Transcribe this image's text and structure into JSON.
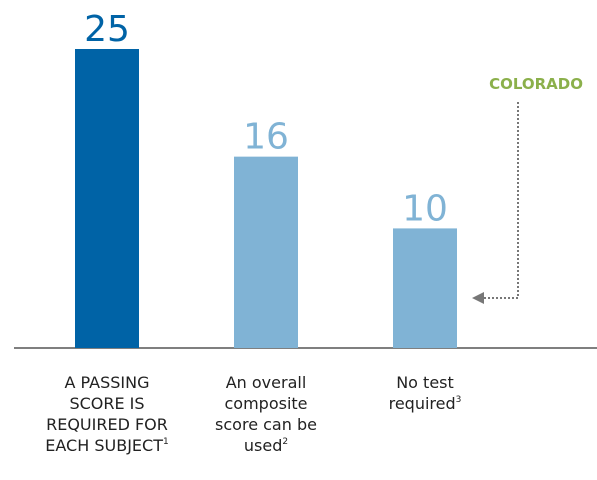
{
  "chart_data": {
    "type": "bar",
    "categories": [
      "A PASSING\nSCORE IS\nREQUIRED FOR\nEACH SUBJECT",
      "An overall\ncomposite\nscore can be\nused",
      "No test\nrequired"
    ],
    "footnotes": [
      "1",
      "2",
      "3"
    ],
    "values": [
      25,
      16,
      10
    ],
    "colors": [
      "#0063a6",
      "#80b3d5",
      "#80b3d5"
    ],
    "annotation": "COLORADO",
    "annotation_color": "#8bb04b"
  }
}
